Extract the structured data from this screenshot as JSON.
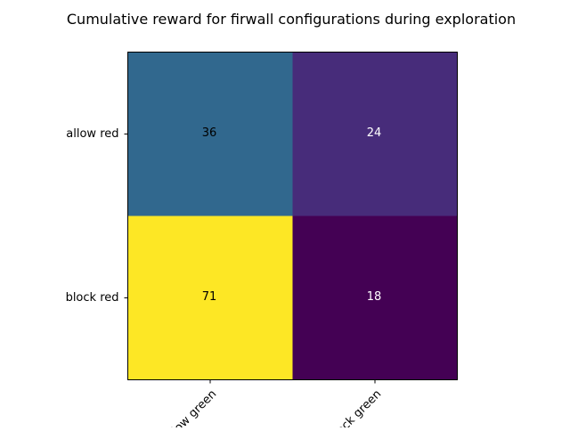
{
  "chart_data": {
    "type": "heatmap",
    "title": "Cumulative reward for firwall configurations during exploration",
    "xlabel": "",
    "ylabel": "",
    "x_categories": [
      "allow green",
      "block green"
    ],
    "y_categories": [
      "allow red",
      "block red"
    ],
    "values": [
      [
        36,
        24
      ],
      [
        71,
        18
      ]
    ],
    "colormap": "viridis",
    "cell_colors": [
      [
        "#31688e",
        "#472c7a"
      ],
      [
        "#fde725",
        "#440154"
      ]
    ],
    "label_colors": [
      [
        "#000000",
        "#ffffff"
      ],
      [
        "#000000",
        "#ffffff"
      ]
    ],
    "grid": false,
    "legend": "none"
  }
}
